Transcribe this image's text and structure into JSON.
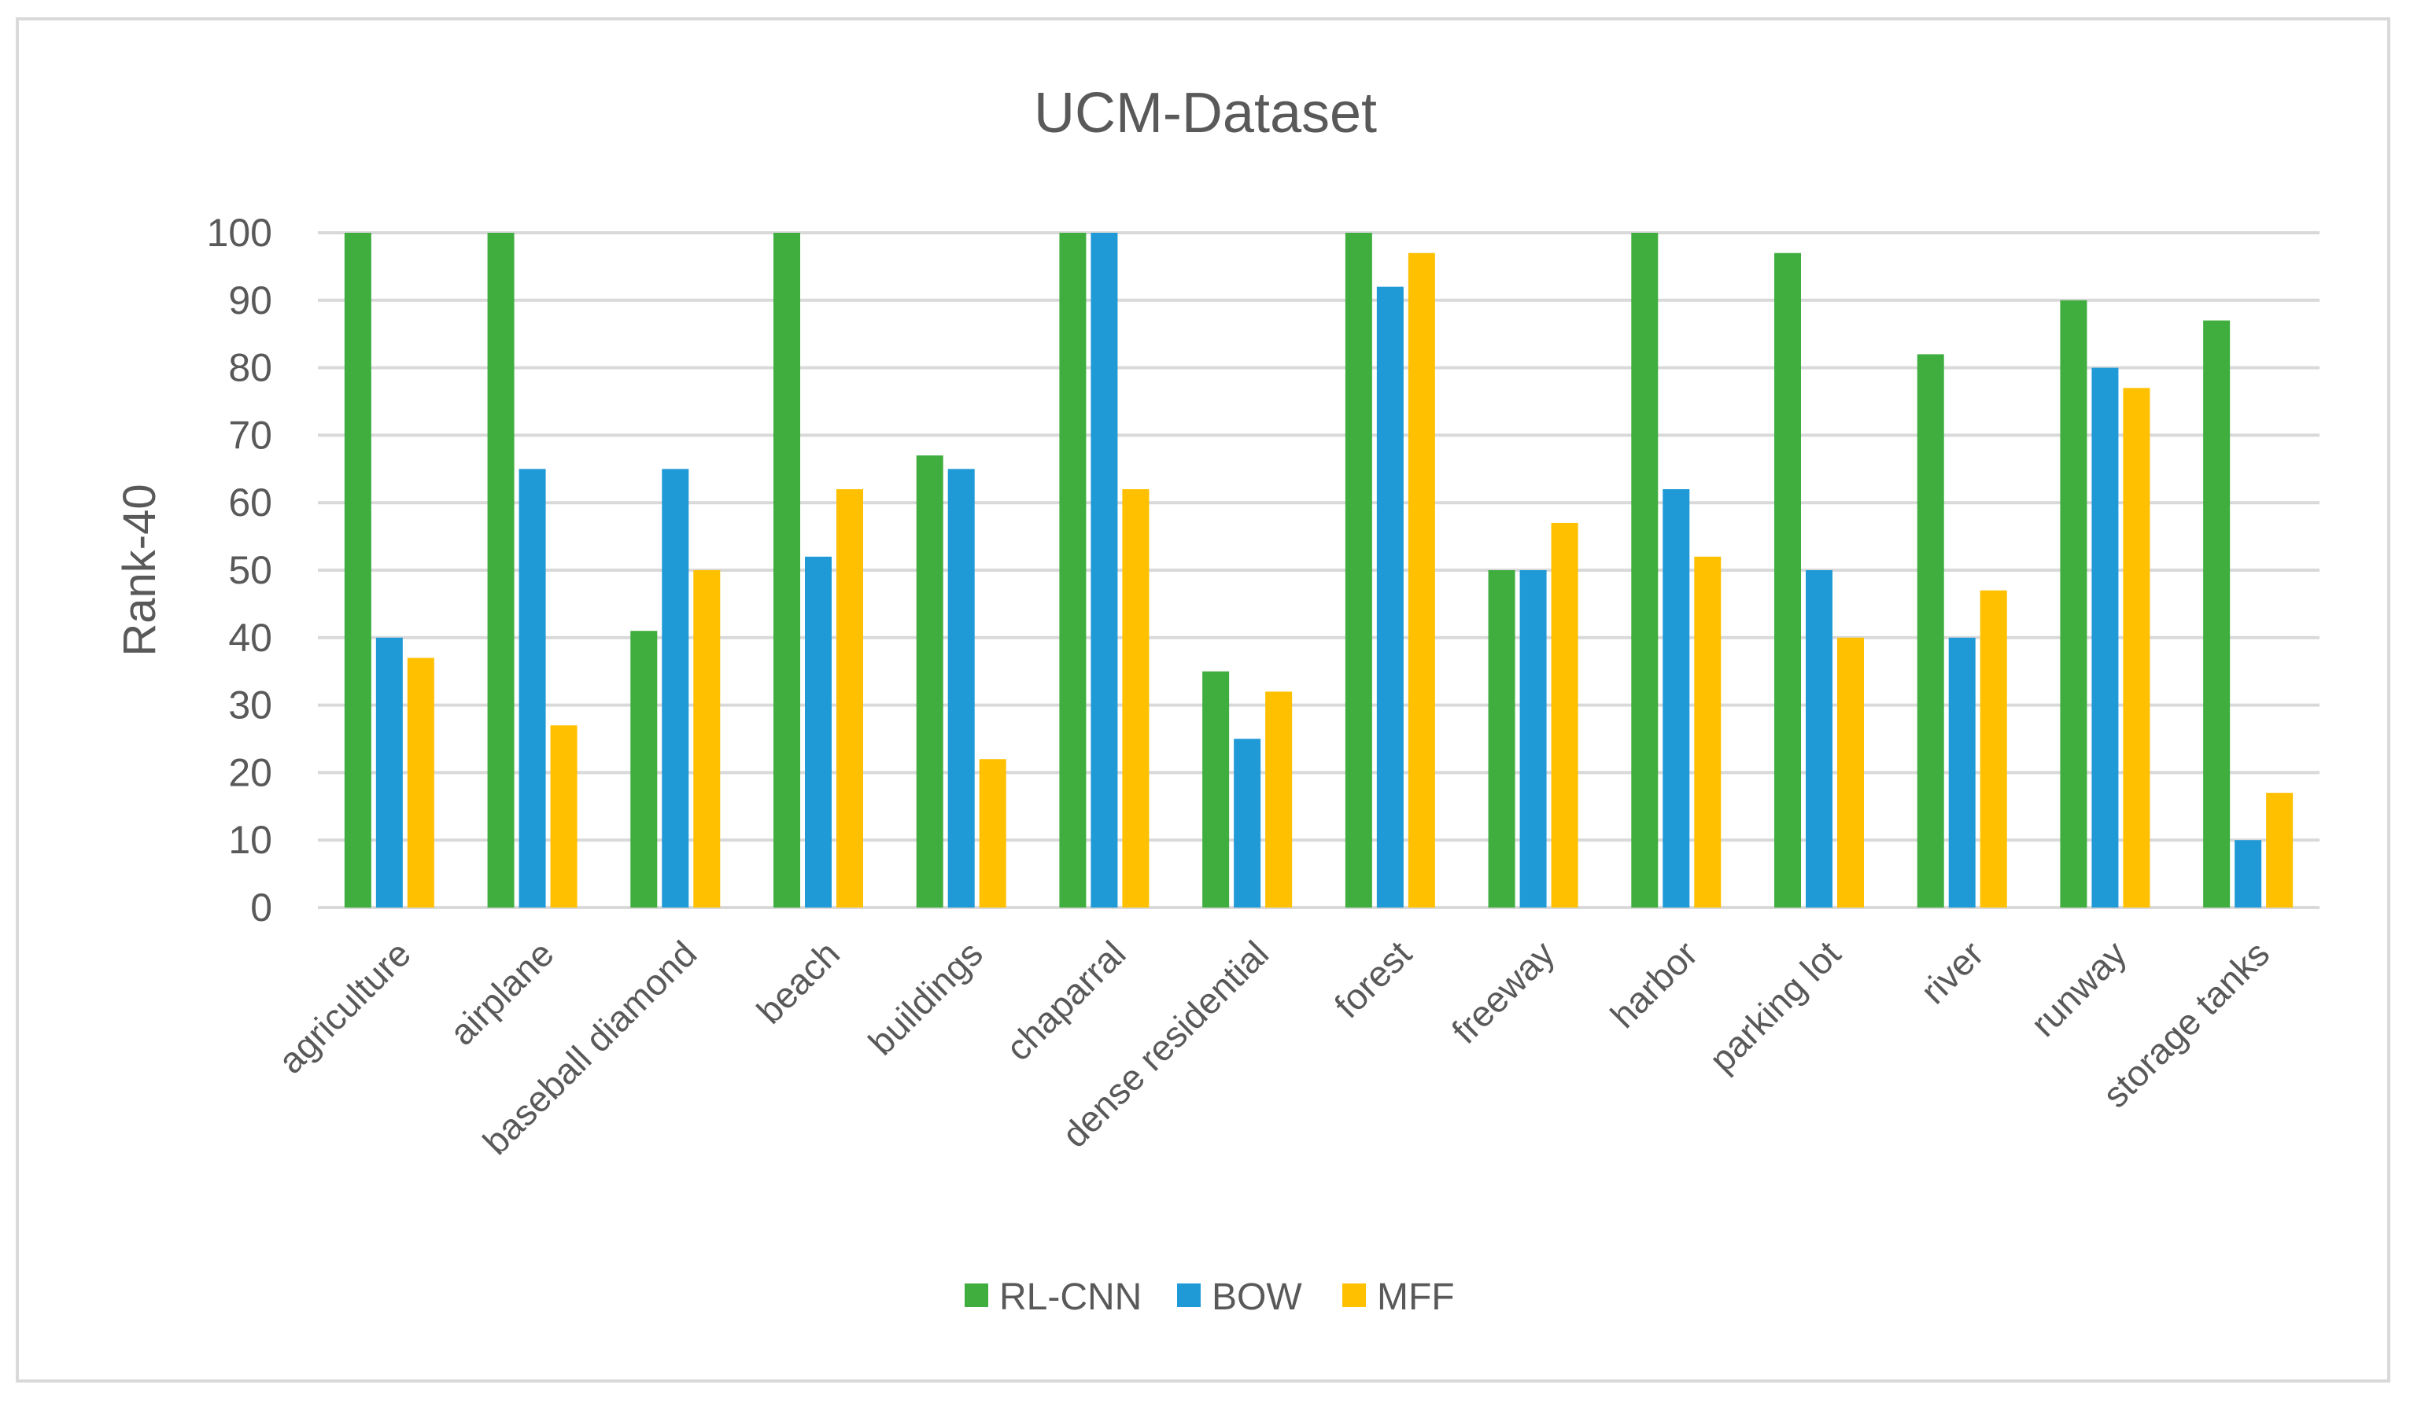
{
  "chart_data": {
    "type": "bar",
    "title": "UCM-Dataset",
    "xlabel": "",
    "ylabel": "Rank-40",
    "ylim": [
      0,
      100
    ],
    "yticks": [
      0,
      10,
      20,
      30,
      40,
      50,
      60,
      70,
      80,
      90,
      100
    ],
    "grid": true,
    "legend_position": "bottom",
    "categories": [
      "agriculture",
      "airplane",
      "baseball diamond",
      "beach",
      "buildings",
      "chaparral",
      "dense residential",
      "forest",
      "freeway",
      "harbor",
      "parking lot",
      "river",
      "runway",
      "storage tanks"
    ],
    "series": [
      {
        "name": "RL-CNN",
        "color": "#3fae3f",
        "values": [
          100,
          100,
          41,
          100,
          67,
          100,
          35,
          100,
          50,
          100,
          97,
          82,
          90,
          87
        ]
      },
      {
        "name": "BOW",
        "color": "#1f9ad6",
        "values": [
          40,
          65,
          65,
          52,
          65,
          100,
          25,
          92,
          50,
          62,
          50,
          40,
          80,
          10
        ]
      },
      {
        "name": "MFF",
        "color": "#ffc000",
        "values": [
          37,
          27,
          50,
          62,
          22,
          62,
          32,
          97,
          57,
          52,
          40,
          47,
          77,
          17
        ]
      }
    ]
  }
}
